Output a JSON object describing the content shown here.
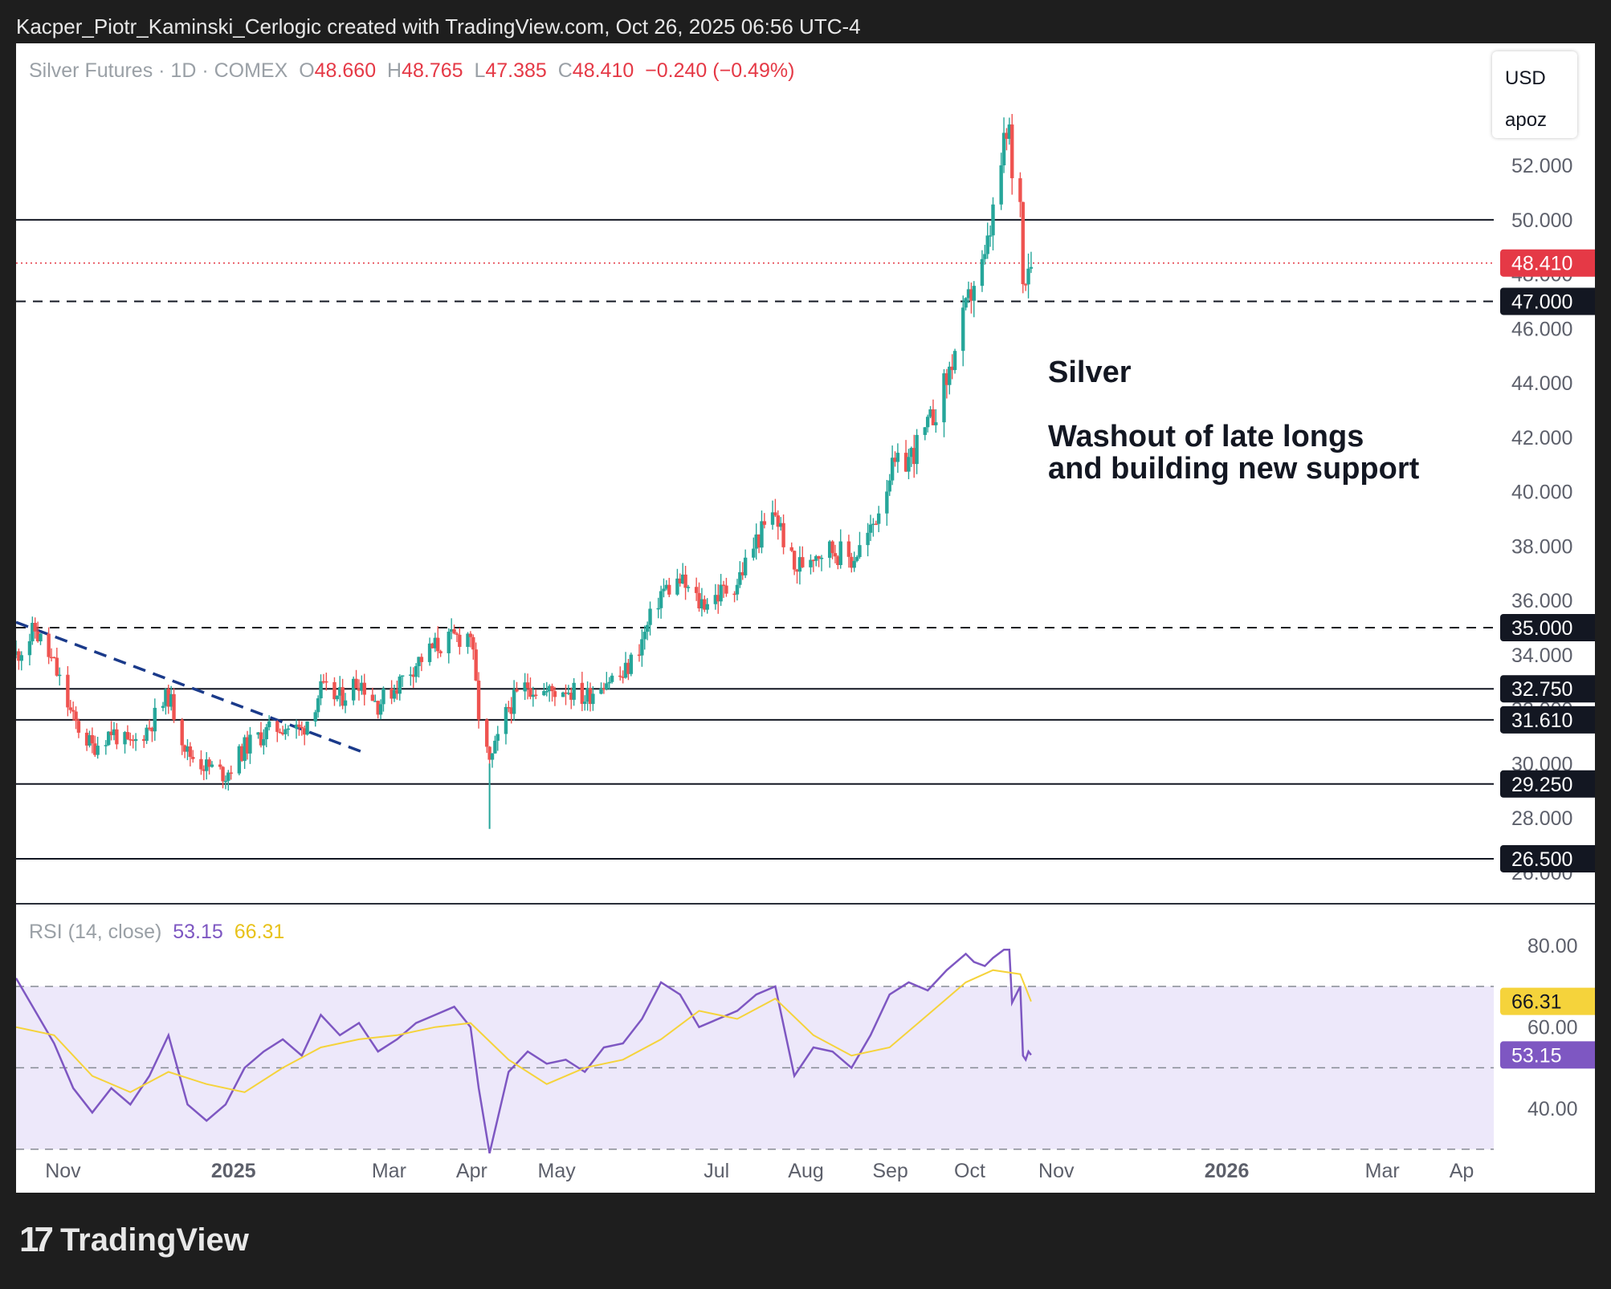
{
  "caption": "Kacper_Piotr_Kaminski_Cerlogic created with TradingView.com, Oct 26, 2025 06:56 UTC-4",
  "legend": {
    "symbol": "Silver Futures · 1D · COMEX",
    "o_label": "O",
    "o": "48.660",
    "h_label": "H",
    "h": "48.765",
    "l_label": "L",
    "l": "47.385",
    "c_label": "C",
    "c": "48.410",
    "change": "−0.240 (−0.49%)"
  },
  "units": {
    "currency": "USD",
    "unit": "apoz"
  },
  "annotation": {
    "title": "Silver",
    "line1": "Washout of late longs",
    "line2": "and building new support"
  },
  "rsi_legend": {
    "label": "RSI (14, close)",
    "rsi": "53.15",
    "ma": "66.31"
  },
  "logo": {
    "mark": "17",
    "text": "TradingView"
  },
  "colors": {
    "up": "#26a69a",
    "down": "#ef5350",
    "rsi": "#7e57c2",
    "rsi_ma": "#f5d33b",
    "trendline": "#1a3a8a",
    "band": "#ede8fa"
  },
  "chart_data": [
    {
      "type": "candlestick",
      "title": "Silver Futures · 1D · COMEX",
      "ylim": [
        25.2,
        54.6
      ],
      "y_ticks": [
        "52.000",
        "50.000",
        "48.000",
        "46.000",
        "44.000",
        "42.000",
        "40.000",
        "38.000",
        "36.000",
        "34.000",
        "32.000",
        "30.000",
        "28.000",
        "26.000"
      ],
      "x_ticks": [
        "Nov",
        "2025",
        "Mar",
        "Apr",
        "May",
        "Jul",
        "Aug",
        "Sep",
        "Oct",
        "Nov",
        "2026",
        "Mar",
        "Ap"
      ],
      "x_range": [
        "2024-10-16",
        "2026-04-12"
      ],
      "last_price": "48.410",
      "levels": [
        {
          "value": 50.0,
          "style": "solid",
          "label": ""
        },
        {
          "value": 47.0,
          "style": "dashed",
          "label": "47.000"
        },
        {
          "value": 35.0,
          "style": "dashed",
          "label": "35.000"
        },
        {
          "value": 32.75,
          "style": "solid",
          "label": "32.750"
        },
        {
          "value": 31.61,
          "style": "solid",
          "label": "31.610"
        },
        {
          "value": 29.25,
          "style": "solid",
          "label": "29.250"
        },
        {
          "value": 26.5,
          "style": "solid",
          "label": "26.500"
        }
      ],
      "trendline": {
        "from": [
          "2024-10-16",
          35.2
        ],
        "to": [
          "2025-02-21",
          30.4
        ],
        "style": "dashed"
      },
      "close_path": [
        [
          "2024-10-16",
          34.0
        ],
        [
          "2024-10-23",
          34.9
        ],
        [
          "2024-10-30",
          33.6
        ],
        [
          "2024-11-06",
          31.6
        ],
        [
          "2024-11-13",
          30.6
        ],
        [
          "2024-11-20",
          31.2
        ],
        [
          "2024-11-27",
          30.6
        ],
        [
          "2024-12-04",
          31.4
        ],
        [
          "2024-12-11",
          32.5
        ],
        [
          "2024-12-18",
          30.4
        ],
        [
          "2024-12-25",
          29.9
        ],
        [
          "2025-01-01",
          29.6
        ],
        [
          "2025-01-08",
          30.6
        ],
        [
          "2025-01-15",
          31.1
        ],
        [
          "2025-01-22",
          31.4
        ],
        [
          "2025-01-29",
          31.2
        ],
        [
          "2025-02-05",
          32.7
        ],
        [
          "2025-02-12",
          32.4
        ],
        [
          "2025-02-19",
          33.1
        ],
        [
          "2025-02-26",
          32.2
        ],
        [
          "2025-03-05",
          32.9
        ],
        [
          "2025-03-12",
          33.7
        ],
        [
          "2025-03-19",
          34.3
        ],
        [
          "2025-03-26",
          34.6
        ],
        [
          "2025-04-01",
          34.8
        ],
        [
          "2025-04-04",
          31.8
        ],
        [
          "2025-04-08",
          29.9
        ],
        [
          "2025-04-15",
          32.1
        ],
        [
          "2025-04-22",
          32.9
        ],
        [
          "2025-04-29",
          32.6
        ],
        [
          "2025-05-06",
          32.8
        ],
        [
          "2025-05-13",
          32.4
        ],
        [
          "2025-05-20",
          33.1
        ],
        [
          "2025-05-27",
          33.2
        ],
        [
          "2025-06-03",
          34.5
        ],
        [
          "2025-06-10",
          36.3
        ],
        [
          "2025-06-17",
          36.7
        ],
        [
          "2025-06-24",
          35.9
        ],
        [
          "2025-07-01",
          36.2
        ],
        [
          "2025-07-08",
          36.7
        ],
        [
          "2025-07-15",
          38.2
        ],
        [
          "2025-07-22",
          39.2
        ],
        [
          "2025-07-29",
          37.1
        ],
        [
          "2025-08-05",
          37.8
        ],
        [
          "2025-08-12",
          37.9
        ],
        [
          "2025-08-19",
          37.5
        ],
        [
          "2025-08-26",
          38.5
        ],
        [
          "2025-09-02",
          40.7
        ],
        [
          "2025-09-09",
          41.2
        ],
        [
          "2025-09-16",
          42.3
        ],
        [
          "2025-09-23",
          44.1
        ],
        [
          "2025-09-30",
          46.6
        ],
        [
          "2025-10-03",
          47.7
        ],
        [
          "2025-10-07",
          48.4
        ],
        [
          "2025-10-10",
          50.2
        ],
        [
          "2025-10-14",
          52.6
        ],
        [
          "2025-10-16",
          53.3
        ],
        [
          "2025-10-17",
          51.2
        ],
        [
          "2025-10-20",
          51.0
        ],
        [
          "2025-10-21",
          47.6
        ],
        [
          "2025-10-22",
          48.2
        ],
        [
          "2025-10-23",
          48.6
        ],
        [
          "2025-10-24",
          48.41
        ]
      ]
    },
    {
      "type": "line",
      "title": "RSI (14, close)",
      "ylim": [
        27.8,
        83.4
      ],
      "y_ticks": [
        "80.00",
        "60.00",
        "40.00"
      ],
      "bands": [
        70,
        50,
        30
      ],
      "series": [
        {
          "name": "RSI",
          "last": "53.15",
          "values": [
            [
              "2024-10-16",
              72
            ],
            [
              "2024-10-23",
              64
            ],
            [
              "2024-10-30",
              56
            ],
            [
              "2024-11-06",
              45
            ],
            [
              "2024-11-13",
              39
            ],
            [
              "2024-11-20",
              45
            ],
            [
              "2024-11-27",
              41
            ],
            [
              "2024-12-04",
              48
            ],
            [
              "2024-12-11",
              58
            ],
            [
              "2024-12-18",
              41
            ],
            [
              "2024-12-25",
              37
            ],
            [
              "2025-01-01",
              41
            ],
            [
              "2025-01-08",
              50
            ],
            [
              "2025-01-15",
              54
            ],
            [
              "2025-01-22",
              57
            ],
            [
              "2025-01-29",
              53
            ],
            [
              "2025-02-05",
              63
            ],
            [
              "2025-02-12",
              58
            ],
            [
              "2025-02-19",
              61
            ],
            [
              "2025-02-26",
              54
            ],
            [
              "2025-03-05",
              57
            ],
            [
              "2025-03-12",
              61
            ],
            [
              "2025-03-19",
              63
            ],
            [
              "2025-03-26",
              65
            ],
            [
              "2025-04-01",
              60
            ],
            [
              "2025-04-04",
              45
            ],
            [
              "2025-04-08",
              29
            ],
            [
              "2025-04-15",
              49
            ],
            [
              "2025-04-22",
              54
            ],
            [
              "2025-04-29",
              51
            ],
            [
              "2025-05-06",
              52
            ],
            [
              "2025-05-13",
              49
            ],
            [
              "2025-05-20",
              55
            ],
            [
              "2025-05-27",
              56
            ],
            [
              "2025-06-03",
              62
            ],
            [
              "2025-06-10",
              71
            ],
            [
              "2025-06-17",
              68
            ],
            [
              "2025-06-24",
              60
            ],
            [
              "2025-07-01",
              62
            ],
            [
              "2025-07-08",
              64
            ],
            [
              "2025-07-15",
              68
            ],
            [
              "2025-07-22",
              70
            ],
            [
              "2025-07-29",
              48
            ],
            [
              "2025-08-05",
              55
            ],
            [
              "2025-08-12",
              54
            ],
            [
              "2025-08-19",
              50
            ],
            [
              "2025-08-26",
              58
            ],
            [
              "2025-09-02",
              68
            ],
            [
              "2025-09-09",
              71
            ],
            [
              "2025-09-16",
              69
            ],
            [
              "2025-09-23",
              74
            ],
            [
              "2025-09-30",
              78
            ],
            [
              "2025-10-03",
              76
            ],
            [
              "2025-10-07",
              75
            ],
            [
              "2025-10-10",
              77
            ],
            [
              "2025-10-14",
              79
            ],
            [
              "2025-10-16",
              79
            ],
            [
              "2025-10-17",
              66
            ],
            [
              "2025-10-20",
              70
            ],
            [
              "2025-10-21",
              53
            ],
            [
              "2025-10-22",
              52
            ],
            [
              "2025-10-23",
              54
            ],
            [
              "2025-10-24",
              53.15
            ]
          ]
        },
        {
          "name": "RSI MA",
          "last": "66.31",
          "values": [
            [
              "2024-10-16",
              60
            ],
            [
              "2024-10-30",
              58
            ],
            [
              "2024-11-13",
              48
            ],
            [
              "2024-11-27",
              44
            ],
            [
              "2024-12-11",
              49
            ],
            [
              "2024-12-25",
              46
            ],
            [
              "2025-01-08",
              44
            ],
            [
              "2025-01-22",
              50
            ],
            [
              "2025-02-05",
              55
            ],
            [
              "2025-02-19",
              57
            ],
            [
              "2025-03-05",
              58
            ],
            [
              "2025-03-19",
              60
            ],
            [
              "2025-04-01",
              61
            ],
            [
              "2025-04-15",
              52
            ],
            [
              "2025-04-29",
              46
            ],
            [
              "2025-05-13",
              50
            ],
            [
              "2025-05-27",
              52
            ],
            [
              "2025-06-10",
              57
            ],
            [
              "2025-06-24",
              64
            ],
            [
              "2025-07-08",
              62
            ],
            [
              "2025-07-22",
              67
            ],
            [
              "2025-08-05",
              58
            ],
            [
              "2025-08-19",
              53
            ],
            [
              "2025-09-02",
              55
            ],
            [
              "2025-09-16",
              63
            ],
            [
              "2025-09-30",
              71
            ],
            [
              "2025-10-10",
              74
            ],
            [
              "2025-10-20",
              73
            ],
            [
              "2025-10-24",
              66.31
            ]
          ]
        }
      ]
    }
  ]
}
